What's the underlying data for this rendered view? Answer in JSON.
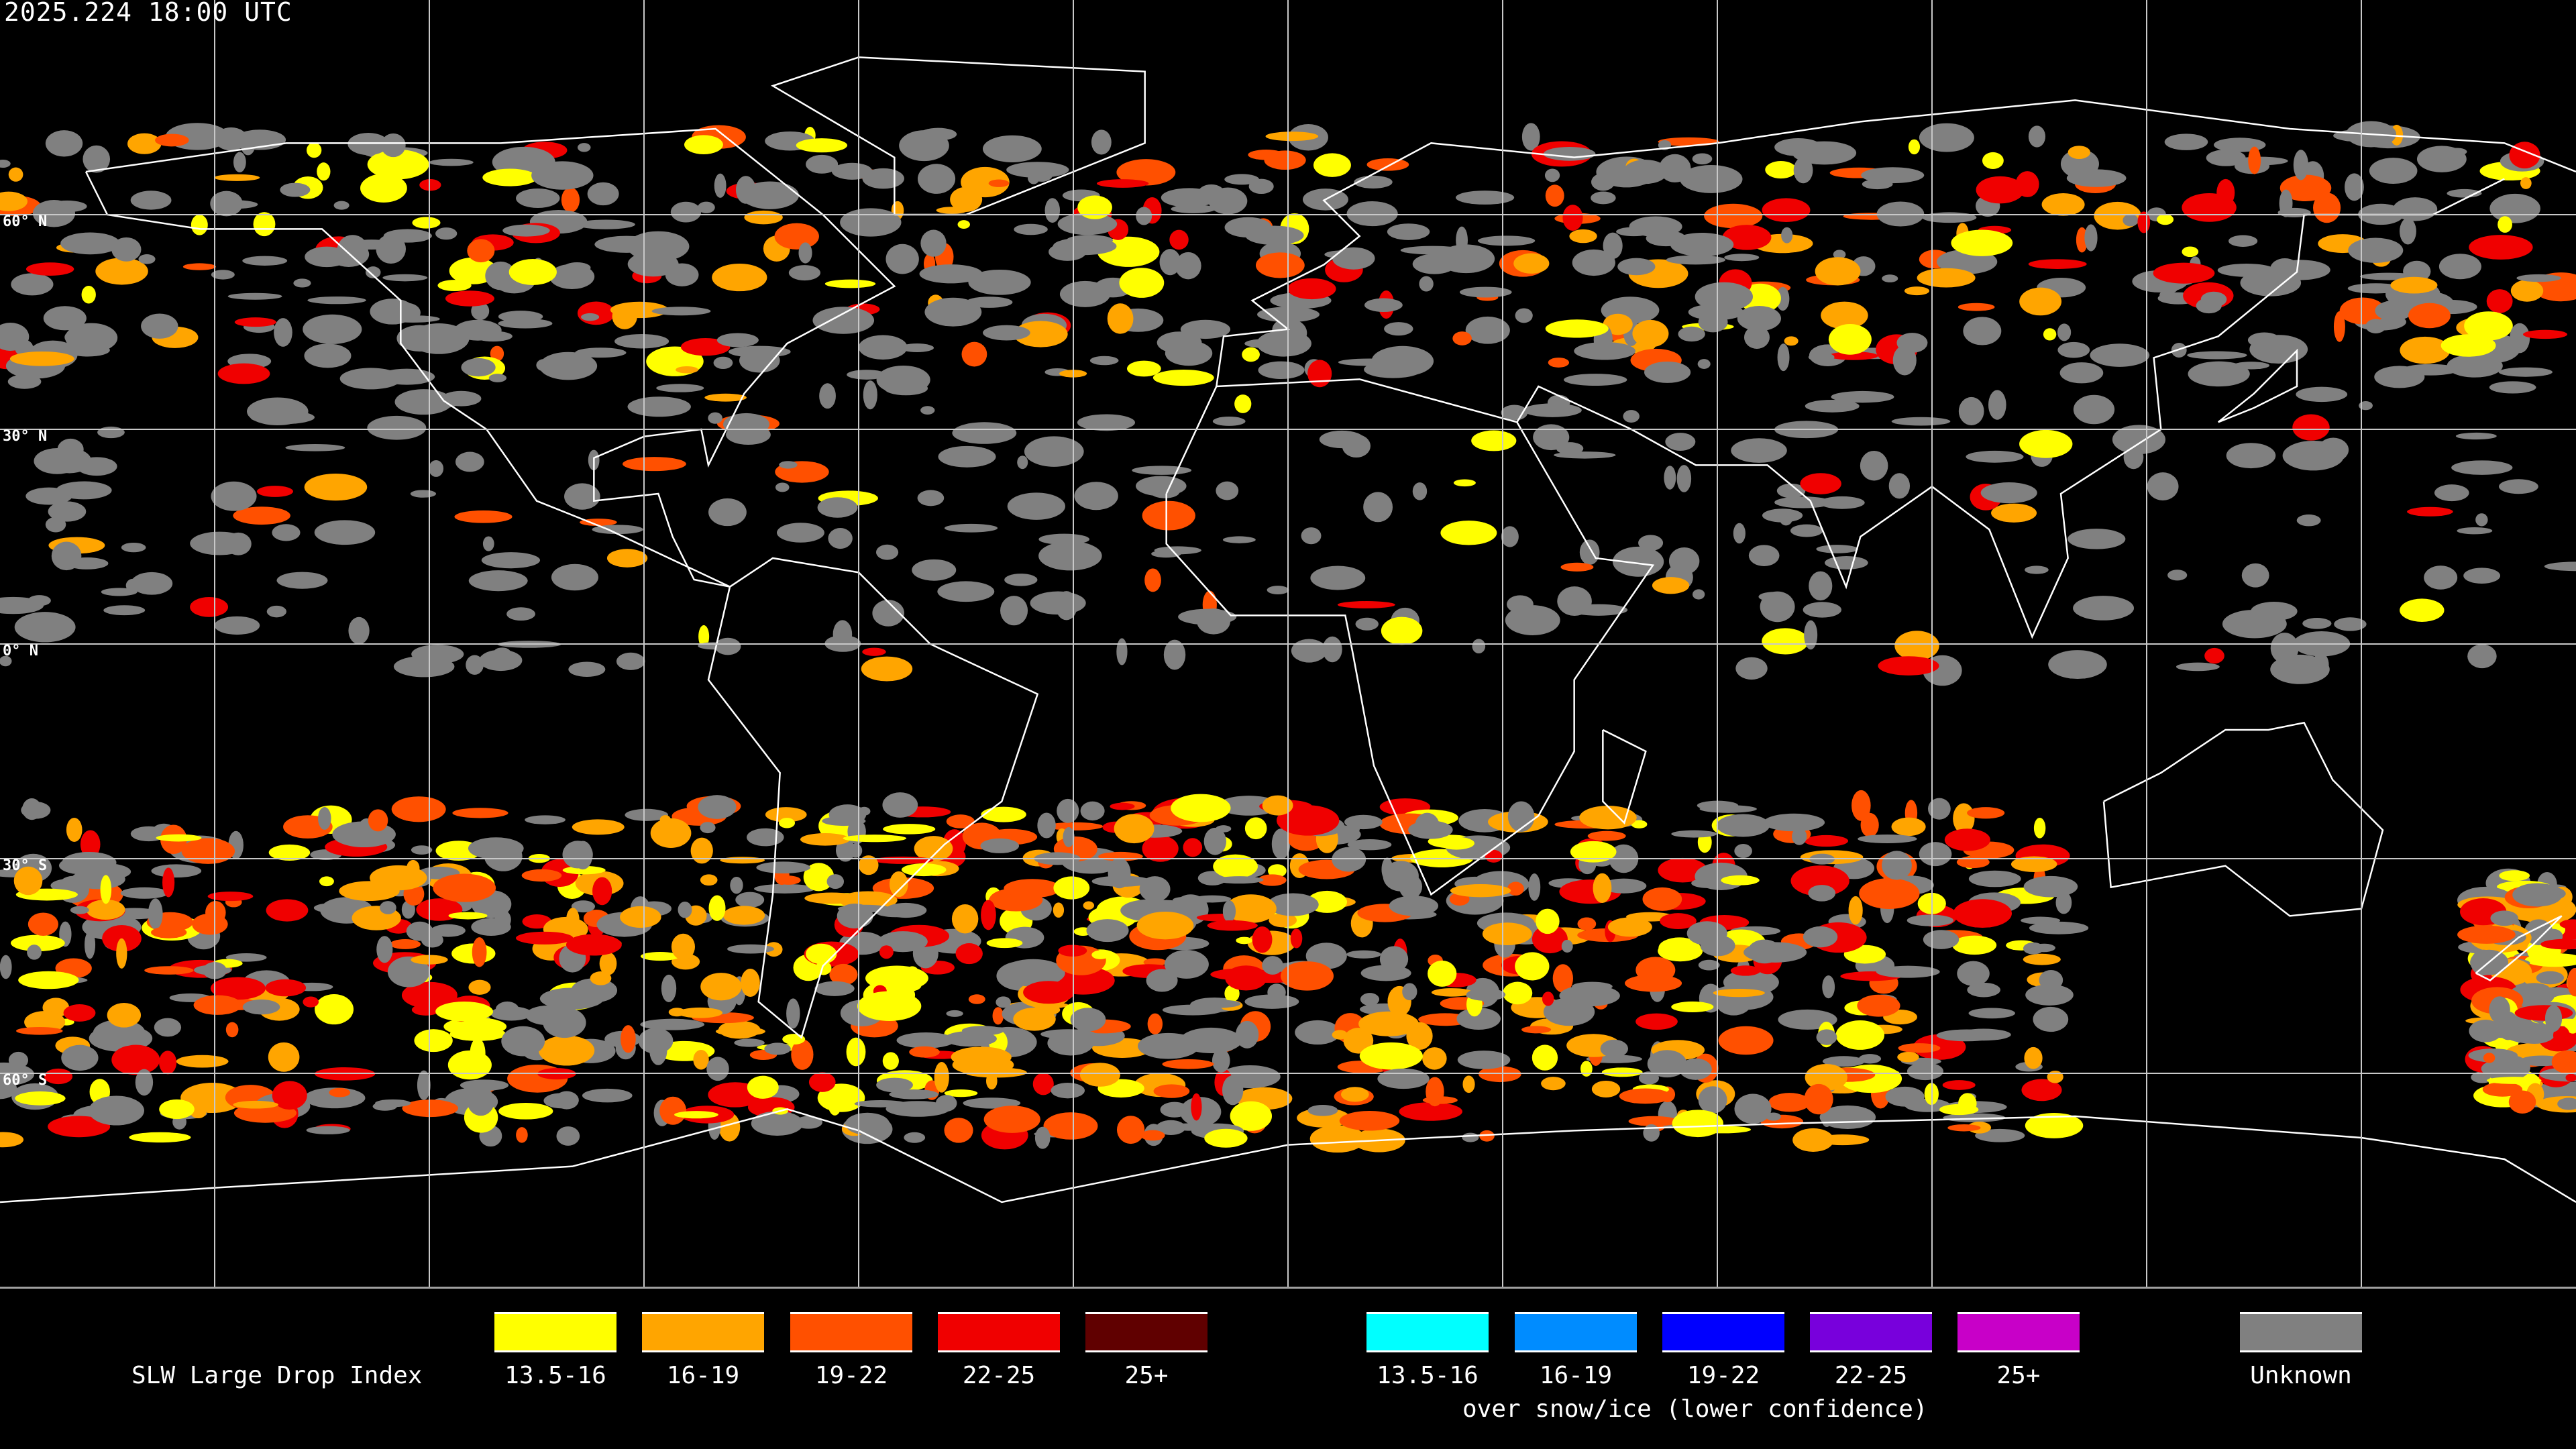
{
  "header": {
    "timestamp": "2025.224 18:00 UTC"
  },
  "grid": {
    "lat_labels": [
      "60° N",
      "30° N",
      "0° N",
      "30° S",
      "60° S"
    ],
    "lat_values": [
      60,
      30,
      0,
      -30,
      -60
    ],
    "lon_step_deg": 30,
    "color": "#c8c8c8"
  },
  "map": {
    "projection": "equirectangular",
    "background": "#000000",
    "coastline_color": "#ffffff"
  },
  "legend": {
    "title": "SLW Large Drop Index",
    "primary": [
      {
        "label": "13.5-16",
        "color": "#ffff00"
      },
      {
        "label": "16-19",
        "color": "#ffa500"
      },
      {
        "label": "19-22",
        "color": "#ff5000"
      },
      {
        "label": "22-25",
        "color": "#f00000"
      },
      {
        "label": "25+",
        "color": "#600000"
      }
    ],
    "snow_ice": [
      {
        "label": "13.5-16",
        "color": "#00ffff"
      },
      {
        "label": "16-19",
        "color": "#008cff"
      },
      {
        "label": "19-22",
        "color": "#0000ff"
      },
      {
        "label": "22-25",
        "color": "#7800dc"
      },
      {
        "label": "25+",
        "color": "#c800c8"
      }
    ],
    "snow_ice_caption": "over snow/ice (lower confidence)",
    "unknown": {
      "label": "Unknown",
      "color": "#808080"
    }
  }
}
